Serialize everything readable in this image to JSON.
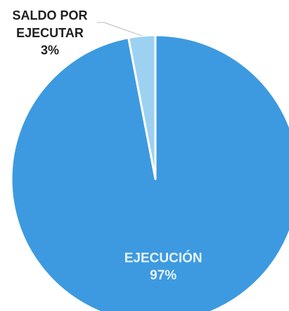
{
  "chart_data": {
    "type": "pie",
    "title": "",
    "slices": [
      {
        "label": "SALDO POR EJECUTAR",
        "label_lines": [
          "SALDO POR",
          "EJECUTAR"
        ],
        "value_text": "3%",
        "value": 3,
        "color": "#9dd1f2",
        "label_color": "#1f1f1f",
        "label_placement": "outside-callout"
      },
      {
        "label": "EJECUCIÓN",
        "label_lines": [
          "EJECUCIÓN"
        ],
        "value_text": "97%",
        "value": 97,
        "color": "#3d9ae0",
        "label_color": "#e8f3fc",
        "label_placement": "inside"
      }
    ],
    "start_angle_deg": 0,
    "direction": "counterclockwise",
    "legend": "none",
    "slice_border_color": "#ffffff"
  }
}
